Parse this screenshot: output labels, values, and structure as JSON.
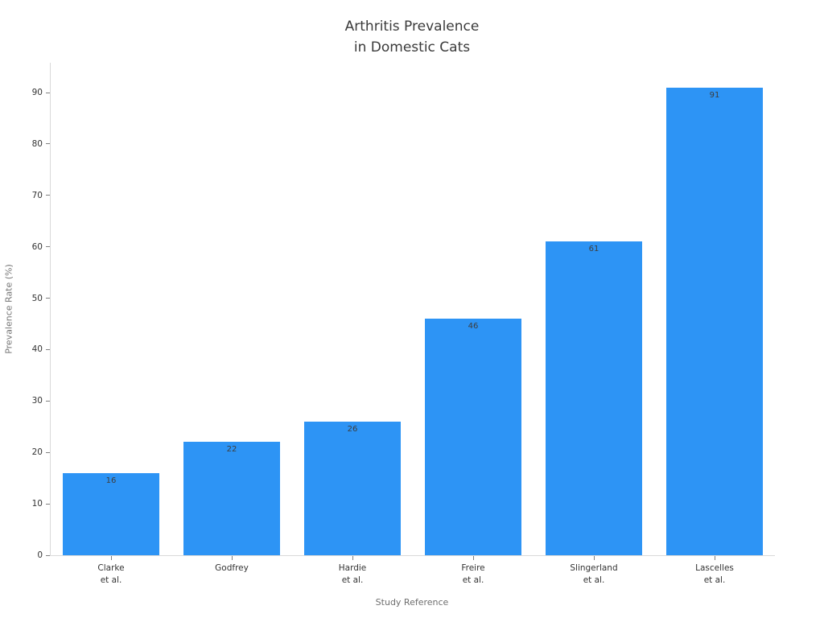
{
  "chart_data": {
    "type": "bar",
    "title": "Arthritis Prevalence\nin Domestic Cats",
    "categories": [
      "Clarke\net al.",
      "Godfrey",
      "Hardie\net al.",
      "Freire\net al.",
      "Slingerland\net al.",
      "Lascelles\net al."
    ],
    "values": [
      16,
      22,
      26,
      46,
      61,
      91
    ],
    "value_labels": [
      "16",
      "22",
      "26",
      "46",
      "61",
      "91"
    ],
    "xlabel": "Study Reference",
    "ylabel": "Prevalence Rate (%)",
    "ylim": [
      0,
      95.8
    ],
    "yticks": [
      0,
      10,
      20,
      30,
      40,
      50,
      60,
      70,
      80,
      90
    ],
    "grid": false,
    "legend": null,
    "bar_color": "#2d94f5",
    "value_label_color": "#3d3d3d",
    "spine_color": "#d9d9d9",
    "tick_color": "#808080"
  }
}
